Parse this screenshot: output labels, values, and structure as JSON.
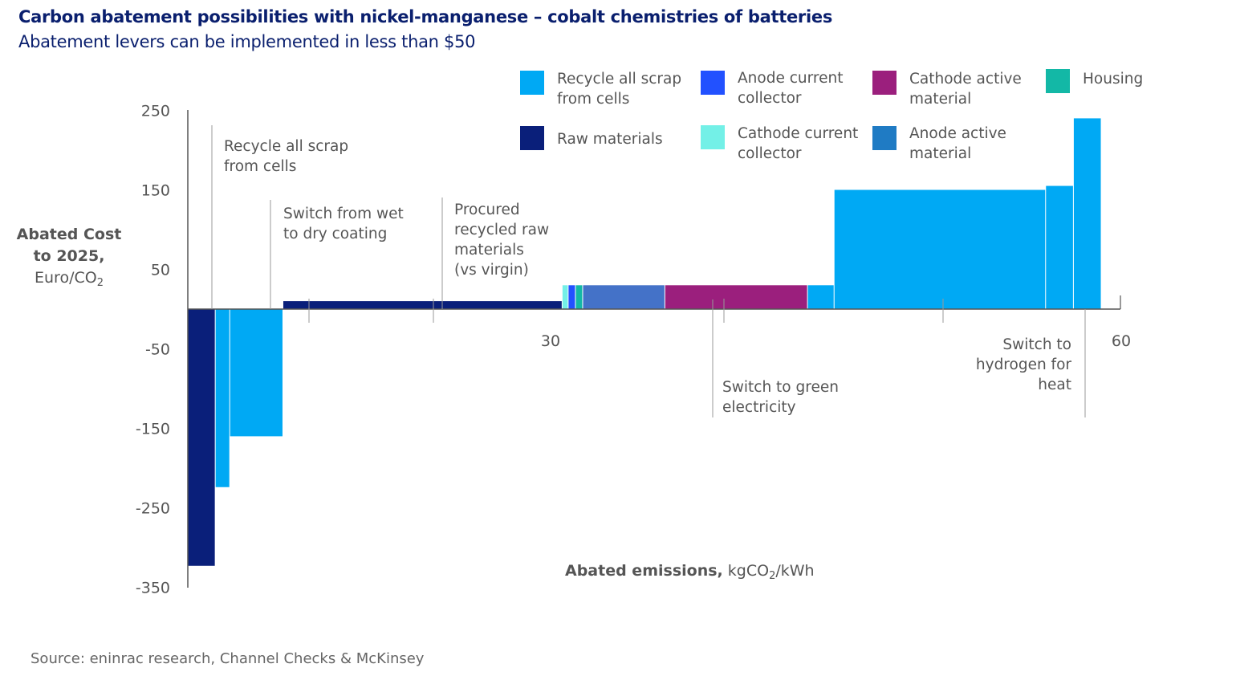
{
  "header": {
    "title": "Carbon abatement possibilities with nickel-manganese – cobalt chemistries of batteries",
    "subtitle": "Abatement levers can be implemented in less than $50"
  },
  "axes": {
    "y_label_bold_1": "Abated Cost",
    "y_label_bold_2": "to 2025,",
    "y_label_unit": "Euro/CO",
    "y_label_sub": "2",
    "x_label_bold": "Abated emissions,",
    "x_label_unit_pre": " kgCO",
    "x_label_sub": "2",
    "x_label_unit_post": "/kWh"
  },
  "source": "Source: eninrac research, Channel Checks & McKinsey",
  "colors": {
    "recycle": "#00a9f4",
    "raw": "#0a1f7a",
    "anode_cc": "#2251ff",
    "cathode_cc": "#73f0e7",
    "cathode_am": "#9b1f7d",
    "anode_am": "#1f7bc4",
    "housing": "#13b8a6",
    "anode_blend": "#4472c8"
  },
  "legend": [
    {
      "label1": "Recycle all scrap",
      "label2": "from cells",
      "color": "#00a9f4"
    },
    {
      "label1": "Anode current",
      "label2": "collector",
      "color": "#2251ff"
    },
    {
      "label1": "Cathode active",
      "label2": "material",
      "color": "#9b1f7d"
    },
    {
      "label1": "Housing",
      "label2": "",
      "color": "#13b8a6"
    },
    {
      "label1": "Raw materials",
      "label2": "",
      "color": "#0a1f7a"
    },
    {
      "label1": "Cathode current",
      "label2": "collector",
      "color": "#73f0e7"
    },
    {
      "label1": "Anode active",
      "label2": "material",
      "color": "#1f7bc4"
    }
  ],
  "annotations": [
    {
      "lines": [
        "Recycle all scrap",
        "from cells"
      ]
    },
    {
      "lines": [
        "Switch from wet",
        "to dry coating"
      ]
    },
    {
      "lines": [
        "Procured",
        "recycled raw",
        "materials",
        "(vs virgin)"
      ]
    },
    {
      "lines": [
        "Switch to green",
        "electricity"
      ]
    },
    {
      "lines": [
        "Switch to",
        "hydrogen for",
        "heat"
      ]
    }
  ],
  "chart_data": {
    "type": "bar",
    "subtype": "marginal abatement cost curve",
    "title": "Carbon abatement possibilities with nickel-manganese – cobalt chemistries of batteries",
    "subtitle": "Abatement levers can be implemented in less than $50",
    "xlabel": "Abated emissions, kgCO2/kWh",
    "ylabel": "Abated Cost to 2025, Euro/CO2",
    "xlim": [
      0,
      61
    ],
    "ylim": [
      -350,
      250
    ],
    "y_ticks": [
      250,
      150,
      50,
      -50,
      -150,
      -250,
      -350
    ],
    "x_ticks": [
      30,
      60
    ],
    "bars": [
      {
        "x0": 0.0,
        "x1": 2.3,
        "value": -323,
        "color": "#0a1f7a"
      },
      {
        "x0": 2.3,
        "x1": 3.5,
        "value": -224,
        "color": "#00a9f4"
      },
      {
        "x0": 3.5,
        "x1": 7.9,
        "value": -160,
        "color": "#00a9f4"
      },
      {
        "x0": 7.9,
        "x1": 31.0,
        "value": 10,
        "color": "#0a1f7a"
      },
      {
        "x0": 31.0,
        "x1": 31.5,
        "value": 30,
        "color": "#73f0e7"
      },
      {
        "x0": 31.5,
        "x1": 32.1,
        "value": 30,
        "color": "#2251ff"
      },
      {
        "x0": 32.1,
        "x1": 32.7,
        "value": 30,
        "color": "#13b8a6"
      },
      {
        "x0": 32.7,
        "x1": 39.5,
        "value": 30,
        "color": "#4472c8"
      },
      {
        "x0": 39.5,
        "x1": 51.3,
        "value": 30,
        "color": "#9b1f7d"
      },
      {
        "x0": 51.3,
        "x1": 53.5,
        "value": 30,
        "color": "#00a9f4"
      },
      {
        "x0": 53.5,
        "x1": 71.0,
        "value": 150,
        "color": "#00a9f4"
      },
      {
        "x0": 71.0,
        "x1": 73.3,
        "value": 155,
        "color": "#00a9f4"
      },
      {
        "x0": 73.3,
        "x1": 75.6,
        "value": 240,
        "color": "#00a9f4"
      }
    ],
    "legend_position": "top-right",
    "grid": false
  }
}
